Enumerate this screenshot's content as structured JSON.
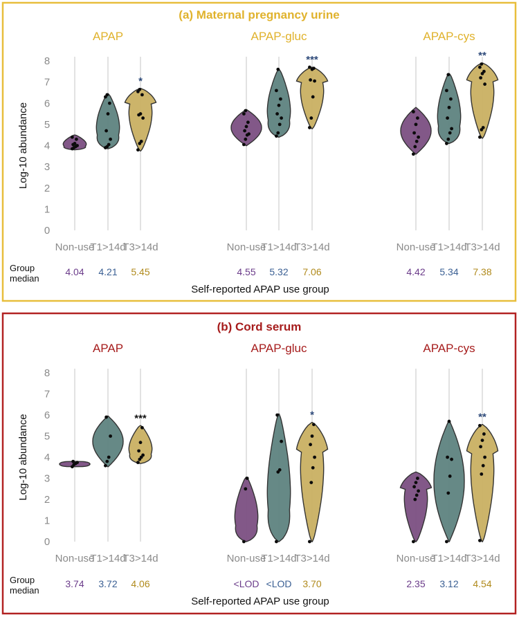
{
  "chart_data": [
    {
      "type": "violin",
      "panel_title": "(a) Maternal pregnancy urine",
      "panel_color": "#e8be3c",
      "title_color": "#e0b22c",
      "ylabel": "Log-10 abundance",
      "xlabel": "Self-reported APAP use group",
      "yticks": [
        "0",
        "1",
        "2",
        "3",
        "4",
        "5",
        "6",
        "7",
        "8"
      ],
      "ylim": [
        0,
        8
      ],
      "categories": [
        "Non-use",
        "T1>14d",
        "T3>14d"
      ],
      "median_label": [
        "Group",
        "median"
      ],
      "plots": [
        {
          "title": "APAP",
          "medians": [
            "4.04",
            "4.21",
            "5.45"
          ],
          "series": [
            {
              "name": "Non-use",
              "min": 3.8,
              "max": 4.5,
              "shape": "bulb-bottom",
              "points": [
                3.85,
                3.9,
                3.95,
                4.0,
                4.05,
                4.1,
                4.3,
                4.4
              ]
            },
            {
              "name": "T1>14d",
              "min": 3.85,
              "max": 6.45,
              "shape": "bulb-bottom",
              "points": [
                3.9,
                3.95,
                4.05,
                4.3,
                4.7,
                5.5,
                6.0,
                6.3,
                6.4
              ]
            },
            {
              "name": "T3>14d",
              "min": 3.75,
              "max": 6.7,
              "shape": "bulb-top",
              "points": [
                3.8,
                4.1,
                4.2,
                5.3,
                5.45,
                5.5,
                6.4,
                6.55,
                6.65
              ]
            }
          ],
          "significance": {
            "category": "T3>14d",
            "label": "*",
            "color": "#2e4a7a"
          }
        },
        {
          "title": "APAP-gluc",
          "medians": [
            "4.55",
            "5.32",
            "7.06"
          ],
          "series": [
            {
              "name": "Non-use",
              "min": 4.0,
              "max": 5.7,
              "shape": "bulb-mid",
              "points": [
                4.05,
                4.3,
                4.5,
                4.55,
                4.7,
                4.9,
                5.1,
                5.5,
                5.65
              ]
            },
            {
              "name": "T1>14d",
              "min": 4.4,
              "max": 7.6,
              "shape": "bulb-bottom",
              "points": [
                4.45,
                4.6,
                5.0,
                5.3,
                5.5,
                5.9,
                6.2,
                6.6,
                7.6
              ]
            },
            {
              "name": "T3>14d",
              "min": 4.8,
              "max": 7.7,
              "shape": "bulb-top",
              "points": [
                4.85,
                5.3,
                6.3,
                7.05,
                7.1,
                7.6,
                7.65,
                7.7
              ]
            }
          ],
          "significance": {
            "category": "T3>14d",
            "label": "***",
            "color": "#2e4a7a"
          }
        },
        {
          "title": "APAP-cys",
          "medians": [
            "4.42",
            "5.34",
            "7.38"
          ],
          "series": [
            {
              "name": "Non-use",
              "min": 3.6,
              "max": 5.8,
              "shape": "bulb-mid",
              "points": [
                3.6,
                3.95,
                4.2,
                4.4,
                4.6,
                5.0,
                5.3,
                5.6
              ]
            },
            {
              "name": "T1>14d",
              "min": 4.1,
              "max": 7.4,
              "shape": "bulb-bottom",
              "points": [
                4.1,
                4.3,
                4.6,
                4.8,
                5.3,
                5.8,
                6.2,
                6.6,
                7.35
              ]
            },
            {
              "name": "T3>14d",
              "min": 4.35,
              "max": 7.9,
              "shape": "bulb-top",
              "points": [
                4.4,
                4.75,
                4.85,
                6.9,
                7.2,
                7.4,
                7.5,
                7.7,
                7.85
              ]
            }
          ],
          "significance": {
            "category": "T3>14d",
            "label": "**",
            "color": "#2e4a7a"
          }
        }
      ]
    },
    {
      "type": "violin",
      "panel_title": "(b) Cord serum",
      "panel_color": "#b22222",
      "title_color": "#a61c1c",
      "ylabel": "Log-10 abundance",
      "xlabel": "Self-reported APAP use group",
      "yticks": [
        "0",
        "1",
        "2",
        "3",
        "4",
        "5",
        "6",
        "7",
        "8"
      ],
      "ylim": [
        0,
        8
      ],
      "categories": [
        "Non-use",
        "T1>14d",
        "T3>14d"
      ],
      "median_label": [
        "Group",
        "median"
      ],
      "plots": [
        {
          "title": "APAP",
          "medians": [
            "3.74",
            "3.72",
            "4.06"
          ],
          "series": [
            {
              "name": "Non-use",
              "min": 3.55,
              "max": 3.8,
              "shape": "flat",
              "points": [
                3.55,
                3.65,
                3.7,
                3.75,
                3.8
              ]
            },
            {
              "name": "T1>14d",
              "min": 3.55,
              "max": 5.95,
              "shape": "bulb-mid",
              "points": [
                3.6,
                3.8,
                4.0,
                5.0,
                5.9
              ]
            },
            {
              "name": "T3>14d",
              "min": 3.7,
              "max": 5.5,
              "shape": "bulb-bottom",
              "points": [
                3.75,
                3.9,
                4.0,
                4.1,
                4.3,
                4.7,
                5.4
              ]
            }
          ],
          "significance": {
            "category": "T3>14d",
            "label": "***",
            "color": "#111111"
          }
        },
        {
          "title": "APAP-gluc",
          "medians": [
            "<LOD",
            "<LOD",
            "3.70"
          ],
          "series": [
            {
              "name": "Non-use",
              "min": 0.0,
              "max": 3.05,
              "shape": "bulb-bottom",
              "points": [
                0.0,
                2.5,
                3.0
              ]
            },
            {
              "name": "T1>14d",
              "min": 0.0,
              "max": 6.05,
              "shape": "bulb-bottom",
              "points": [
                0.0,
                3.3,
                3.4,
                4.75,
                6.0
              ]
            },
            {
              "name": "T3>14d",
              "min": 0.0,
              "max": 5.65,
              "shape": "bulb-top",
              "points": [
                0.0,
                2.8,
                3.5,
                4.0,
                4.6,
                5.0,
                5.55
              ]
            }
          ],
          "significance": {
            "category": "T3>14d",
            "label": "*",
            "color": "#2e4a7a"
          }
        },
        {
          "title": "APAP-cys",
          "medians": [
            "2.35",
            "3.12",
            "4.54"
          ],
          "series": [
            {
              "name": "Non-use",
              "min": 0.0,
              "max": 3.3,
              "shape": "bulb-top",
              "points": [
                0.0,
                2.0,
                2.2,
                2.4,
                2.6,
                2.8,
                3.0
              ]
            },
            {
              "name": "T1>14d",
              "min": 0.0,
              "max": 5.75,
              "shape": "bulb-mid",
              "points": [
                0.0,
                2.3,
                3.1,
                3.9,
                4.0,
                5.7
              ]
            },
            {
              "name": "T3>14d",
              "min": 0.0,
              "max": 5.55,
              "shape": "bulb-top",
              "points": [
                0.05,
                3.2,
                3.6,
                4.0,
                4.5,
                4.8,
                5.1,
                5.5
              ]
            }
          ],
          "significance": {
            "category": "T3>14d",
            "label": "**",
            "color": "#2e4a7a"
          }
        }
      ]
    }
  ],
  "colors": {
    "Non-use": "#7b4f82",
    "T1>14d": "#5e8380",
    "T3>14d": "#c9b062",
    "median_text": [
      "#6b3c8a",
      "#3a5f93",
      "#b08a1c"
    ]
  }
}
